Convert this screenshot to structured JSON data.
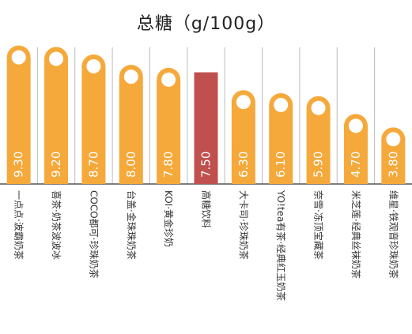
{
  "chart_data": {
    "type": "bar",
    "title": "总糖（g/100g）",
    "xlabel": "",
    "ylabel": "",
    "ylim": [
      0,
      10.5
    ],
    "grid": "vertical separators",
    "legend": "none",
    "categories": [
      "一点点·波霸奶茶",
      "喜茶·奶茶波波冰",
      "COCO都可·珍珠奶茶",
      "台盖·金珠珠奶茶",
      "KOI·黄金珍奶",
      "高糖饮料",
      "大卡司·珍珠奶茶",
      "YO!tea有茶·经典红玉奶茶",
      "奈雪·冻顶宝藏茶",
      "米芝莲·经典丝袜奶茶",
      "维星·铁观音珍珠奶茶"
    ],
    "values": [
      9.3,
      9.2,
      8.7,
      8.0,
      7.8,
      7.5,
      6.3,
      6.1,
      5.9,
      4.7,
      3.8
    ],
    "value_labels": [
      "9.30",
      "9.20",
      "8.70",
      "8.00",
      "7.80",
      "7.50",
      "6.30",
      "6.10",
      "5.90",
      "4.70",
      "3.80"
    ],
    "highlight_index": 5,
    "colors": {
      "bar": "#F5A93B",
      "bar_highlight": "#C0504D",
      "separator": "#bbbbbb",
      "axis": "#555555",
      "dot": "#ffffff"
    }
  }
}
